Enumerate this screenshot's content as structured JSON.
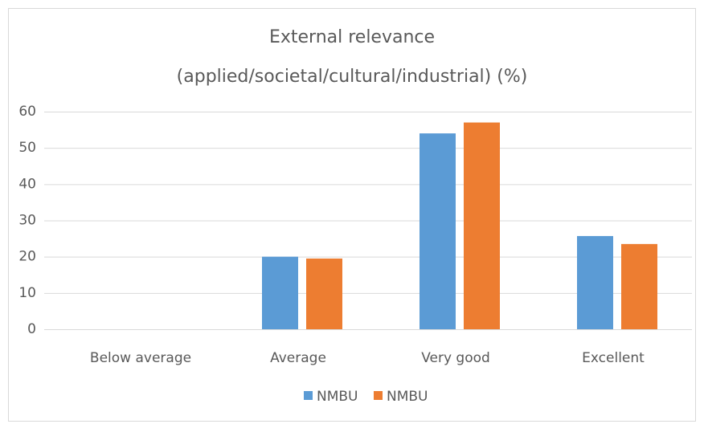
{
  "chart_data": {
    "type": "bar",
    "title": [
      "External relevance",
      "(applied/societal/cultural/industrial)  (%)"
    ],
    "categories": [
      "Below average",
      "Average",
      "Very good",
      "Excellent"
    ],
    "series": [
      {
        "name": "NMBU",
        "color": "#5b9bd5",
        "values": [
          0,
          20,
          54,
          25.7
        ]
      },
      {
        "name": "NMBU",
        "color": "#ed7d31",
        "values": [
          0,
          19.5,
          57,
          23.5
        ]
      }
    ],
    "ylim": [
      0,
      60
    ],
    "yticks": [
      0,
      10,
      20,
      30,
      40,
      50,
      60
    ],
    "grid": true,
    "legend": "bottom"
  }
}
